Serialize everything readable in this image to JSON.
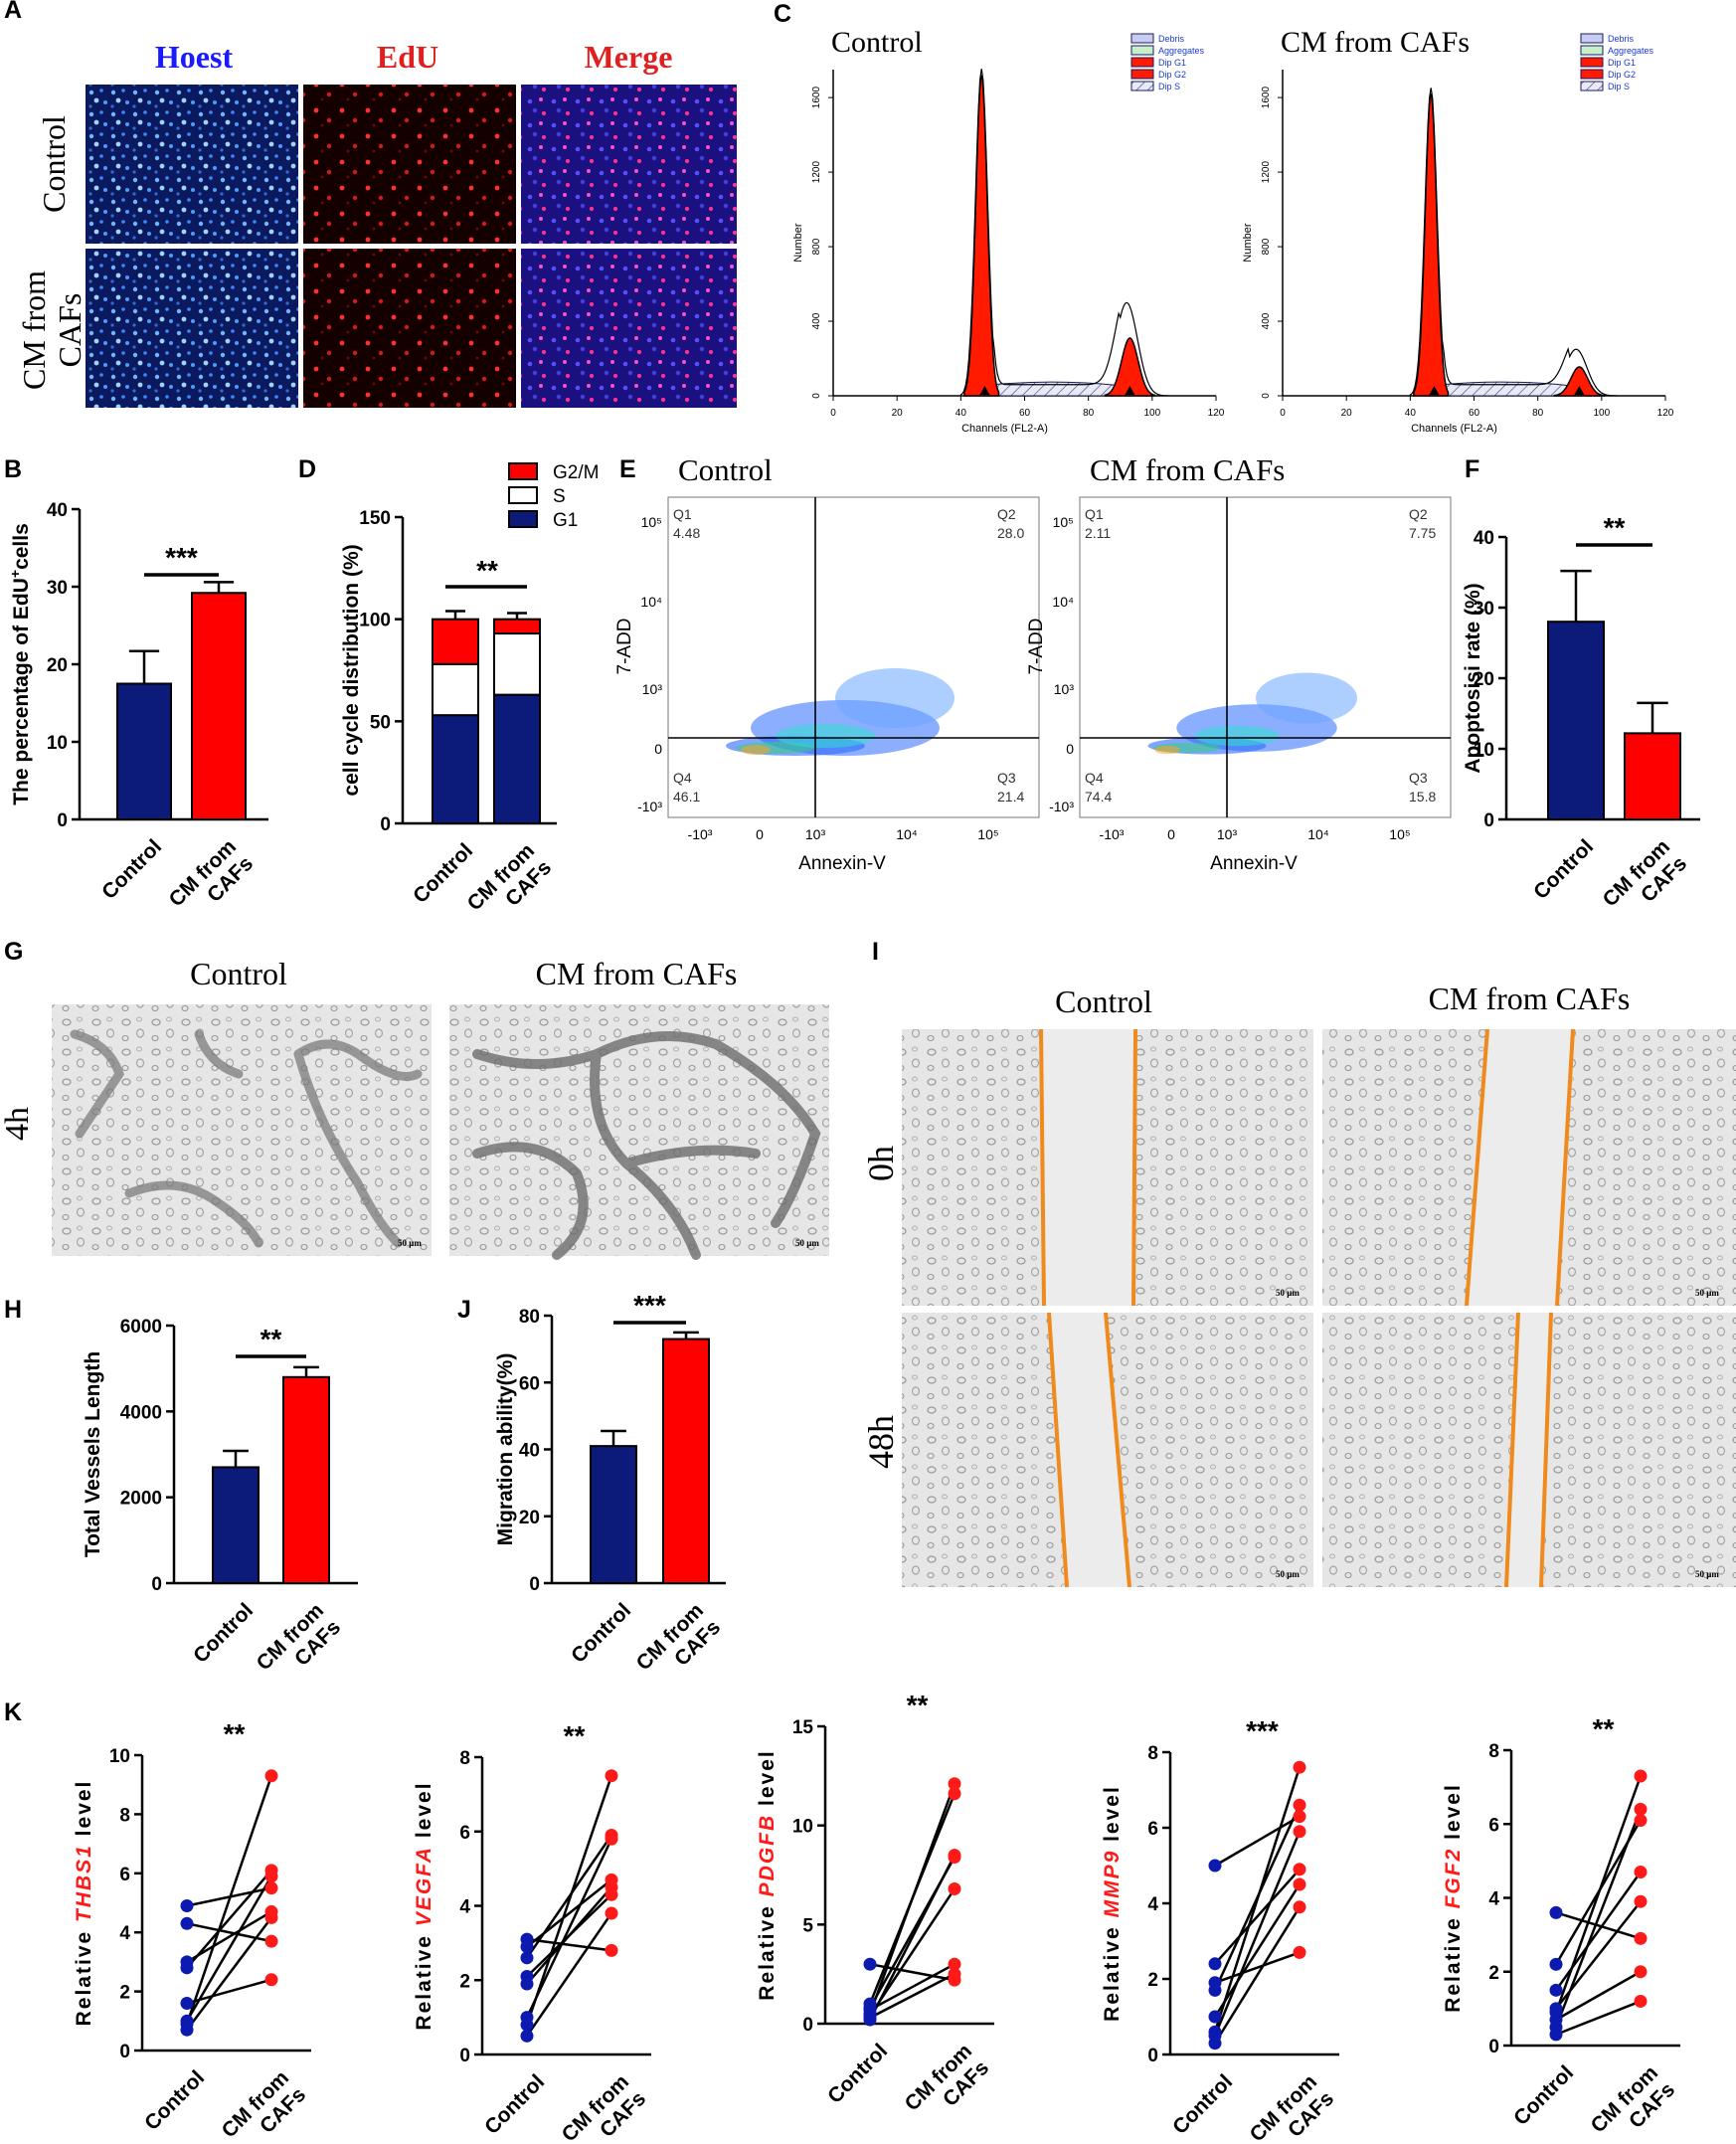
{
  "panel_letters": [
    "A",
    "B",
    "C",
    "D",
    "E",
    "F",
    "G",
    "H",
    "I",
    "J",
    "K"
  ],
  "panel_a": {
    "columns": [
      "Hoest",
      "EdU",
      "Merge"
    ],
    "rows": [
      "Control",
      "CM from CAFs"
    ],
    "colors": {
      "hoest": "#1a1aff",
      "edu": "#e02020",
      "merge_h": "#1a1aff",
      "merge_e": "#e02020"
    }
  },
  "panel_c": {
    "plots": [
      {
        "title": "Control",
        "g1_peak": 1720,
        "g2_peak": 500
      },
      {
        "title": "CM from CAFs",
        "g1_peak": 1620,
        "g2_peak": 250
      }
    ],
    "legend": [
      "Debris",
      "Aggregates",
      "Dip G1",
      "Dip G2",
      "Dip S"
    ],
    "xlabel": "Channels (FL2-A)",
    "ylabel": "Number",
    "xticks": [
      "0",
      "20",
      "40",
      "60",
      "80",
      "100",
      "120"
    ],
    "yticks": [
      "0",
      "400",
      "800",
      "1200",
      "1600"
    ]
  },
  "panel_e": {
    "plots": [
      {
        "title": "Control",
        "Q1": "4.48",
        "Q2": "28.0",
        "Q3": "21.4",
        "Q4": "46.1"
      },
      {
        "title": "CM from CAFs",
        "Q1": "2.11",
        "Q2": "7.75",
        "Q3": "15.8",
        "Q4": "74.4"
      }
    ],
    "quadrant_names": [
      "Q1",
      "Q2",
      "Q3",
      "Q4"
    ],
    "xlabel": "Annexin-V",
    "ylabel": "7-ADD",
    "xticks": [
      "-10³",
      "0",
      "10³",
      "10⁴",
      "10⁵"
    ],
    "yticks": [
      "10⁵",
      "10⁴",
      "10³",
      "0",
      "-10³"
    ]
  },
  "panel_g": {
    "titles": [
      "Control",
      "CM from CAFs"
    ],
    "row": "4h",
    "scale": "50 μm"
  },
  "panel_i": {
    "titles": [
      "Control",
      "CM from CAFs"
    ],
    "rows": [
      "0h",
      "48h"
    ],
    "scale": "50 μm"
  },
  "chart_data": [
    {
      "panel": "B",
      "type": "bar",
      "categories": [
        "Control",
        "CM from CAFs"
      ],
      "values": [
        17.5,
        29.2
      ],
      "errors": [
        4.2,
        1.4
      ],
      "ylabel": "The percentage of EdU⁺cells",
      "ylim": [
        0,
        40
      ],
      "yticks": [
        "0",
        "10",
        "20",
        "30",
        "40"
      ],
      "significance": "***",
      "colors": [
        "#0c1a7a",
        "#ff0000"
      ]
    },
    {
      "panel": "D",
      "type": "bar",
      "stacked": true,
      "categories": [
        "Control",
        "CM from CAFs"
      ],
      "series": [
        {
          "name": "G1",
          "values": [
            53,
            63
          ],
          "errors": [
            3,
            4
          ]
        },
        {
          "name": "S",
          "values": [
            25,
            30
          ],
          "errors": [
            3,
            3
          ]
        },
        {
          "name": "G2/M",
          "values": [
            22,
            7
          ],
          "errors": [
            4,
            3
          ]
        }
      ],
      "ylabel": "cell cycle distribution (%)",
      "ylim": [
        0,
        150
      ],
      "yticks": [
        "0",
        "50",
        "100",
        "150"
      ],
      "significance": "**",
      "legend": [
        "G2/M",
        "S",
        "G1"
      ]
    },
    {
      "panel": "F",
      "type": "bar",
      "categories": [
        "Control",
        "CM from CAFs"
      ],
      "values": [
        28,
        12.2
      ],
      "errors": [
        7.2,
        4.3
      ],
      "ylabel": "Apoptosisi rate (%)",
      "ylim": [
        0,
        40
      ],
      "yticks": [
        "0",
        "10",
        "20",
        "30",
        "40"
      ],
      "significance": "**"
    },
    {
      "panel": "H",
      "type": "bar",
      "categories": [
        "Control",
        "CM from CAFs"
      ],
      "values": [
        2700,
        4800
      ],
      "errors": [
        380,
        230
      ],
      "ylabel": "Total Vessels Length",
      "ylim": [
        0,
        6000
      ],
      "yticks": [
        "0",
        "2000",
        "4000",
        "6000"
      ],
      "significance": "**"
    },
    {
      "panel": "J",
      "type": "bar",
      "categories": [
        "Control",
        "CM from CAFs"
      ],
      "values": [
        41,
        73
      ],
      "errors": [
        4.5,
        2
      ],
      "ylabel": "Migration ability(%)",
      "ylim": [
        0,
        80
      ],
      "yticks": [
        "0",
        "20",
        "40",
        "60",
        "80"
      ],
      "significance": "***"
    },
    {
      "panel": "K1",
      "type": "paired",
      "gene": "THBS1",
      "ylabel_prefix": "Relative",
      "ylabel_suffix": "level",
      "categories": [
        "Control",
        "CM from CAFs"
      ],
      "ylim": [
        0,
        10
      ],
      "yticks": [
        "0",
        "2",
        "4",
        "6",
        "8",
        "10"
      ],
      "significance": "**",
      "pairs": [
        [
          4.9,
          5.5
        ],
        [
          4.3,
          3.7
        ],
        [
          3.0,
          4.7
        ],
        [
          2.8,
          6.1
        ],
        [
          1.6,
          2.4
        ],
        [
          1.0,
          5.9
        ],
        [
          0.9,
          9.3
        ],
        [
          0.7,
          4.5
        ]
      ]
    },
    {
      "panel": "K2",
      "type": "paired",
      "gene": "VEGFA",
      "ylabel_prefix": "Relative",
      "ylabel_suffix": "level",
      "categories": [
        "Control",
        "CM from CAFs"
      ],
      "ylim": [
        0,
        8
      ],
      "yticks": [
        "0",
        "2",
        "4",
        "6",
        "8"
      ],
      "significance": "**",
      "pairs": [
        [
          3.1,
          2.8
        ],
        [
          2.9,
          4.7
        ],
        [
          2.6,
          5.9
        ],
        [
          2.1,
          4.3
        ],
        [
          1.9,
          4.5
        ],
        [
          1.0,
          5.8
        ],
        [
          0.8,
          7.5
        ],
        [
          0.5,
          3.8
        ]
      ]
    },
    {
      "panel": "K3",
      "type": "paired",
      "gene": "PDGFB",
      "ylabel_prefix": "Relative",
      "ylabel_suffix": "level",
      "categories": [
        "Control",
        "CM from CAFs"
      ],
      "ylim": [
        0,
        15
      ],
      "yticks": [
        "0",
        "5",
        "10",
        "15"
      ],
      "significance": "**",
      "pairs": [
        [
          3.0,
          2.2
        ],
        [
          1.0,
          11.6
        ],
        [
          0.8,
          8.4
        ],
        [
          0.7,
          3.0
        ],
        [
          0.5,
          12.1
        ],
        [
          0.4,
          6.8
        ],
        [
          0.3,
          2.5
        ],
        [
          0.2,
          8.5
        ]
      ]
    },
    {
      "panel": "K4",
      "type": "paired",
      "gene": "MMP9",
      "ylabel_prefix": "Relative",
      "ylabel_suffix": "level",
      "categories": [
        "Control",
        "CM from CAFs"
      ],
      "ylim": [
        0,
        8
      ],
      "yticks": [
        "0",
        "2",
        "4",
        "6",
        "8"
      ],
      "significance": "***",
      "pairs": [
        [
          5.0,
          6.3
        ],
        [
          2.4,
          4.9
        ],
        [
          1.9,
          2.7
        ],
        [
          1.7,
          6.6
        ],
        [
          1.0,
          4.5
        ],
        [
          0.6,
          7.6
        ],
        [
          0.5,
          5.9
        ],
        [
          0.3,
          3.9
        ]
      ]
    },
    {
      "panel": "K5",
      "type": "paired",
      "gene": "FGF2",
      "ylabel_prefix": "Relative",
      "ylabel_suffix": "level",
      "categories": [
        "Control",
        "CM from CAFs"
      ],
      "ylim": [
        0,
        8
      ],
      "yticks": [
        "0",
        "2",
        "4",
        "6",
        "8"
      ],
      "significance": "**",
      "pairs": [
        [
          3.6,
          2.9
        ],
        [
          2.2,
          6.1
        ],
        [
          1.5,
          4.7
        ],
        [
          1.0,
          3.9
        ],
        [
          0.9,
          7.3
        ],
        [
          0.7,
          2.0
        ],
        [
          0.5,
          6.4
        ],
        [
          0.3,
          1.2
        ]
      ]
    }
  ]
}
